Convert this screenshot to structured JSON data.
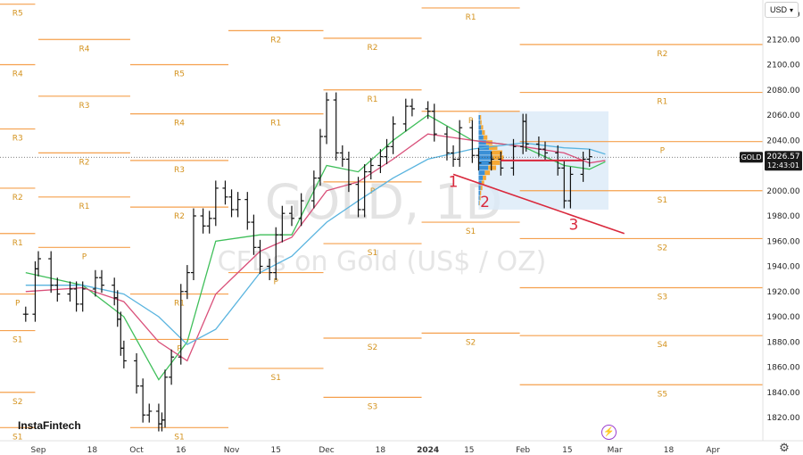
{
  "chart_data": {
    "type": "candlestick",
    "symbol": "GOLD",
    "timeframe": "1D",
    "watermark_title": "GOLD, 1D",
    "watermark_subtitle": "CFDs on Gold (US$ / OZ)",
    "currency": "USD",
    "brand": "InstaFintech",
    "last_price": "2026.57",
    "countdown": "12:43:01",
    "ylim": [
      1805,
      2150
    ],
    "y_ticks": [
      1820,
      1840,
      1860,
      1880,
      1900,
      1920,
      1940,
      1960,
      1980,
      2000,
      2020,
      2040,
      2060,
      2080,
      2100,
      2120,
      2140
    ],
    "x_ticks": [
      {
        "label": "Sep",
        "date": "2023-09-01"
      },
      {
        "label": "18",
        "date": "2023-09-18"
      },
      {
        "label": "Oct",
        "date": "2023-10-02"
      },
      {
        "label": "16",
        "date": "2023-10-16"
      },
      {
        "label": "Nov",
        "date": "2023-11-01"
      },
      {
        "label": "15",
        "date": "2023-11-15"
      },
      {
        "label": "Dec",
        "date": "2023-12-01"
      },
      {
        "label": "18",
        "date": "2023-12-18"
      },
      {
        "label": "2024",
        "date": "2024-01-02",
        "bold": true
      },
      {
        "label": "15",
        "date": "2024-01-15"
      },
      {
        "label": "Feb",
        "date": "2024-02-01"
      },
      {
        "label": "15",
        "date": "2024-02-15"
      },
      {
        "label": "Mar",
        "date": "2024-03-01"
      },
      {
        "label": "18",
        "date": "2024-03-18"
      },
      {
        "label": "Apr",
        "date": "2024-04-01"
      }
    ],
    "prices": [
      [
        "2023-08-28",
        1902
      ],
      [
        "2023-08-31",
        1938
      ],
      [
        "2023-09-01",
        1946
      ],
      [
        "2023-09-05",
        1925
      ],
      [
        "2023-09-07",
        1918
      ],
      [
        "2023-09-11",
        1922
      ],
      [
        "2023-09-13",
        1910
      ],
      [
        "2023-09-15",
        1922
      ],
      [
        "2023-09-19",
        1931
      ],
      [
        "2023-09-21",
        1925
      ],
      [
        "2023-09-25",
        1915
      ],
      [
        "2023-09-26",
        1898
      ],
      [
        "2023-09-27",
        1875
      ],
      [
        "2023-09-28",
        1865
      ],
      [
        "2023-10-02",
        1845
      ],
      [
        "2023-10-04",
        1822
      ],
      [
        "2023-10-06",
        1825
      ],
      [
        "2023-10-09",
        1815
      ],
      [
        "2023-10-10",
        1818
      ],
      [
        "2023-10-11",
        1852
      ],
      [
        "2023-10-13",
        1868
      ],
      [
        "2023-10-16",
        1920
      ],
      [
        "2023-10-18",
        1935
      ],
      [
        "2023-10-20",
        1980
      ],
      [
        "2023-10-23",
        1972
      ],
      [
        "2023-10-25",
        1978
      ],
      [
        "2023-10-27",
        2002
      ],
      [
        "2023-10-30",
        1995
      ],
      [
        "2023-11-01",
        1985
      ],
      [
        "2023-11-03",
        1993
      ],
      [
        "2023-11-06",
        1975
      ],
      [
        "2023-11-08",
        1955
      ],
      [
        "2023-11-10",
        1940
      ],
      [
        "2023-11-13",
        1935
      ],
      [
        "2023-11-15",
        1965
      ],
      [
        "2023-11-17",
        1982
      ],
      [
        "2023-11-20",
        1978
      ],
      [
        "2023-11-23",
        1992
      ],
      [
        "2023-11-27",
        2010
      ],
      [
        "2023-11-29",
        2043
      ],
      [
        "2023-12-01",
        2072
      ],
      [
        "2023-12-04",
        2030
      ],
      [
        "2023-12-06",
        2025
      ],
      [
        "2023-12-08",
        2005
      ],
      [
        "2023-12-11",
        1985
      ],
      [
        "2023-12-13",
        2015
      ],
      [
        "2023-12-15",
        2020
      ],
      [
        "2023-12-18",
        2027
      ],
      [
        "2023-12-20",
        2035
      ],
      [
        "2023-12-22",
        2053
      ],
      [
        "2023-12-26",
        2067
      ],
      [
        "2023-12-28",
        2065
      ],
      [
        "2024-01-02",
        2063
      ],
      [
        "2024-01-04",
        2045
      ],
      [
        "2024-01-08",
        2030
      ],
      [
        "2024-01-10",
        2025
      ],
      [
        "2024-01-12",
        2050
      ],
      [
        "2024-01-16",
        2028
      ],
      [
        "2024-01-18",
        2022
      ],
      [
        "2024-01-22",
        2025
      ],
      [
        "2024-01-25",
        2018
      ],
      [
        "2024-01-29",
        2035
      ],
      [
        "2024-02-01",
        2055
      ],
      [
        "2024-02-02",
        2037
      ],
      [
        "2024-02-06",
        2033
      ],
      [
        "2024-02-08",
        2030
      ],
      [
        "2024-02-12",
        2018
      ],
      [
        "2024-02-14",
        1992
      ],
      [
        "2024-02-16",
        2013
      ],
      [
        "2024-02-20",
        2025
      ],
      [
        "2024-02-22",
        2027
      ]
    ],
    "moving_averages": [
      {
        "color": "#3fbf5a",
        "values": [
          [
            "2023-08-28",
            1935
          ],
          [
            "2023-09-15",
            1925
          ],
          [
            "2023-09-28",
            1900
          ],
          [
            "2023-10-09",
            1850
          ],
          [
            "2023-10-18",
            1880
          ],
          [
            "2023-10-27",
            1960
          ],
          [
            "2023-11-10",
            1965
          ],
          [
            "2023-11-20",
            1965
          ],
          [
            "2023-12-01",
            2020
          ],
          [
            "2023-12-11",
            2015
          ],
          [
            "2023-12-22",
            2040
          ],
          [
            "2024-01-02",
            2060
          ],
          [
            "2024-01-16",
            2040
          ],
          [
            "2024-02-01",
            2035
          ],
          [
            "2024-02-14",
            2020
          ],
          [
            "2024-02-22",
            2017
          ],
          [
            "2024-02-27",
            2023
          ]
        ]
      },
      {
        "color": "#d9507a",
        "values": [
          [
            "2023-08-28",
            1920
          ],
          [
            "2023-09-15",
            1923
          ],
          [
            "2023-09-28",
            1912
          ],
          [
            "2023-10-09",
            1880
          ],
          [
            "2023-10-18",
            1865
          ],
          [
            "2023-10-27",
            1918
          ],
          [
            "2023-11-10",
            1952
          ],
          [
            "2023-11-20",
            1963
          ],
          [
            "2023-12-01",
            2000
          ],
          [
            "2023-12-11",
            2007
          ],
          [
            "2023-12-22",
            2025
          ],
          [
            "2024-01-02",
            2045
          ],
          [
            "2024-01-16",
            2040
          ],
          [
            "2024-02-01",
            2035
          ],
          [
            "2024-02-14",
            2030
          ],
          [
            "2024-02-22",
            2022
          ],
          [
            "2024-02-27",
            2024
          ]
        ]
      },
      {
        "color": "#5ab4df",
        "values": [
          [
            "2023-08-28",
            1925
          ],
          [
            "2023-09-15",
            1925
          ],
          [
            "2023-09-28",
            1918
          ],
          [
            "2023-10-09",
            1900
          ],
          [
            "2023-10-18",
            1878
          ],
          [
            "2023-10-27",
            1890
          ],
          [
            "2023-11-10",
            1935
          ],
          [
            "2023-11-20",
            1948
          ],
          [
            "2023-12-01",
            1975
          ],
          [
            "2023-12-11",
            1992
          ],
          [
            "2023-12-22",
            2010
          ],
          [
            "2024-01-02",
            2025
          ],
          [
            "2024-01-16",
            2033
          ],
          [
            "2024-02-01",
            2038
          ],
          [
            "2024-02-14",
            2034
          ],
          [
            "2024-02-22",
            2033
          ],
          [
            "2024-02-27",
            2029
          ]
        ]
      }
    ],
    "pivot_levels": [
      {
        "period": "2023-08",
        "start": "2023-08-01",
        "end": "2023-08-31",
        "levels": [
          {
            "label": "R5",
            "value": 2148
          },
          {
            "label": "R4",
            "value": 2100
          },
          {
            "label": "R3",
            "value": 2049
          },
          {
            "label": "R2",
            "value": 2002
          },
          {
            "label": "R1",
            "value": 1966
          },
          {
            "label": "P",
            "value": 1918
          },
          {
            "label": "S1",
            "value": 1889
          },
          {
            "label": "S2",
            "value": 1840
          },
          {
            "label": "S1",
            "value": 1812
          }
        ]
      },
      {
        "period": "2023-09",
        "start": "2023-09-01",
        "end": "2023-09-30",
        "levels": [
          {
            "label": "R4",
            "value": 2120
          },
          {
            "label": "R3",
            "value": 2075
          },
          {
            "label": "R2",
            "value": 2030
          },
          {
            "label": "R1",
            "value": 1995
          },
          {
            "label": "P",
            "value": 1955
          }
        ]
      },
      {
        "period": "2023-10",
        "start": "2023-09-30",
        "end": "2023-10-31",
        "levels": [
          {
            "label": "R5",
            "value": 2100
          },
          {
            "label": "R4",
            "value": 2061
          },
          {
            "label": "R3",
            "value": 2024
          },
          {
            "label": "R2",
            "value": 1987
          },
          {
            "label": "R1",
            "value": 1918
          },
          {
            "label": "P",
            "value": 1882
          },
          {
            "label": "S1",
            "value": 1812
          }
        ]
      },
      {
        "period": "2023-11",
        "start": "2023-10-31",
        "end": "2023-11-30",
        "levels": [
          {
            "label": "R2",
            "value": 2127
          },
          {
            "label": "R1",
            "value": 2061
          },
          {
            "label": "P",
            "value": 1935
          },
          {
            "label": "S1",
            "value": 1859
          }
        ]
      },
      {
        "period": "2023-12",
        "start": "2023-11-30",
        "end": "2023-12-31",
        "levels": [
          {
            "label": "R2",
            "value": 2121
          },
          {
            "label": "R1",
            "value": 2080
          },
          {
            "label": "P",
            "value": 2007
          },
          {
            "label": "S1",
            "value": 1958
          },
          {
            "label": "S2",
            "value": 1883
          },
          {
            "label": "S3",
            "value": 1836
          }
        ]
      },
      {
        "period": "2024-01",
        "start": "2023-12-31",
        "end": "2024-01-31",
        "levels": [
          {
            "label": "R1",
            "value": 2145
          },
          {
            "label": "P",
            "value": 2063
          },
          {
            "label": "S1",
            "value": 1975
          },
          {
            "label": "S2",
            "value": 1887
          }
        ]
      },
      {
        "period": "2024-02",
        "start": "2024-01-31",
        "end": "2024-04-30",
        "levels": [
          {
            "label": "R2",
            "value": 2116
          },
          {
            "label": "R1",
            "value": 2078
          },
          {
            "label": "P",
            "value": 2039
          },
          {
            "label": "S1",
            "value": 2000
          },
          {
            "label": "S2",
            "value": 1962
          },
          {
            "label": "S3",
            "value": 1923
          },
          {
            "label": "S4",
            "value": 1885
          },
          {
            "label": "S5",
            "value": 1846
          }
        ]
      }
    ],
    "annotations": [
      {
        "label": "1",
        "date": "2024-01-10",
        "value": 2003
      },
      {
        "label": "2",
        "date": "2024-01-20",
        "value": 1987
      },
      {
        "label": "3",
        "date": "2024-02-17",
        "value": 1969
      }
    ],
    "trendline": {
      "color": "#d9283c",
      "start": [
        "2024-01-10",
        2013
      ],
      "end": [
        "2024-03-04",
        1966
      ]
    },
    "horizontal_line": {
      "color": "#d9283c",
      "start": [
        "2024-01-25",
        2024
      ],
      "end": [
        "2024-02-20",
        2024
      ]
    },
    "volume_profile": {
      "start": "2024-01-18",
      "end": "2024-02-28",
      "top": 2063,
      "bottom": 1985,
      "levels": [
        [
          2058,
          0.1
        ],
        [
          2054,
          0.12
        ],
        [
          2050,
          0.18
        ],
        [
          2046,
          0.25
        ],
        [
          2042,
          0.35
        ],
        [
          2038,
          0.55
        ],
        [
          2034,
          0.75
        ],
        [
          2030,
          0.95
        ],
        [
          2026,
          1.0
        ],
        [
          2022,
          0.85
        ],
        [
          2018,
          0.7
        ],
        [
          2014,
          0.45
        ],
        [
          2010,
          0.3
        ],
        [
          2006,
          0.22
        ],
        [
          2002,
          0.15
        ],
        [
          1998,
          0.1
        ],
        [
          1994,
          0.08
        ],
        [
          1990,
          0.05
        ]
      ]
    },
    "colors": {
      "pivot": "#f5a04d",
      "candle": "#111111",
      "price_tag": "#1a1a1a",
      "profile_blue": "#3a8fd6",
      "profile_orange": "#f6a834",
      "profile_bg": "#dbeaf7"
    }
  }
}
